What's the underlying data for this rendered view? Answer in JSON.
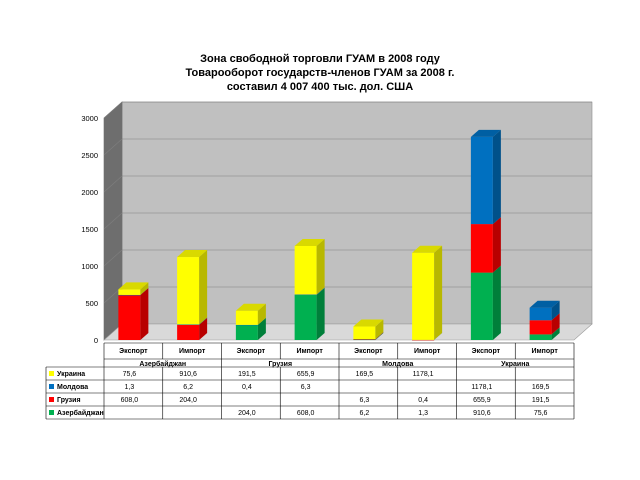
{
  "chart_data": {
    "type": "bar",
    "stacked": true,
    "three_d": true,
    "title_lines": [
      "Зона свободной торговли ГУАМ в 2008 году",
      "Товарооборот государств-членов ГУАМ за 2008 г.",
      "составил 4 007 400 тыс. дол. США"
    ],
    "xlabel": "",
    "ylabel": "",
    "ylim": [
      0,
      3000
    ],
    "yticks": [
      0,
      500,
      1000,
      1500,
      2000,
      2500,
      3000
    ],
    "grid": true,
    "legend_placement": "data-table-left",
    "categories": [
      "Экспорт",
      "Импорт",
      "Экспорт",
      "Импорт",
      "Экспорт",
      "Импорт",
      "Экспорт",
      "Импорт"
    ],
    "groups": [
      {
        "label": "Азербайджан",
        "span": 2
      },
      {
        "label": "Грузия",
        "span": 2
      },
      {
        "label": "Молдова",
        "span": 2
      },
      {
        "label": "Украина",
        "span": 2
      }
    ],
    "series": [
      {
        "name": "Азербайджан",
        "color": "#00b050",
        "values": [
          0,
          0,
          204.0,
          608.0,
          6.2,
          1.3,
          910.6,
          75.6
        ],
        "labels": [
          "",
          "",
          "204,0",
          "608,0",
          "6,2",
          "1,3",
          "910,6",
          "75,6"
        ]
      },
      {
        "name": "Грузия",
        "color": "#ff0000",
        "values": [
          608.0,
          204.0,
          0,
          0,
          6.3,
          0.4,
          655.9,
          191.5
        ],
        "labels": [
          "608,0",
          "204,0",
          "",
          "",
          "6,3",
          "0,4",
          "655,9",
          "191,5"
        ]
      },
      {
        "name": "Молдова",
        "color": "#0070c0",
        "values": [
          1.3,
          6.2,
          0.4,
          6.3,
          0,
          0,
          1178.1,
          169.5
        ],
        "labels": [
          "1,3",
          "6,2",
          "0,4",
          "6,3",
          "",
          "",
          "1178,1",
          "169,5"
        ]
      },
      {
        "name": "Украина",
        "color": "#ffff00",
        "values": [
          75.6,
          910.6,
          191.5,
          655.9,
          169.5,
          1178.1,
          0,
          0
        ],
        "labels": [
          "75,6",
          "910,6",
          "191,5",
          "655,9",
          "169,5",
          "1178,1",
          "",
          ""
        ]
      }
    ]
  }
}
